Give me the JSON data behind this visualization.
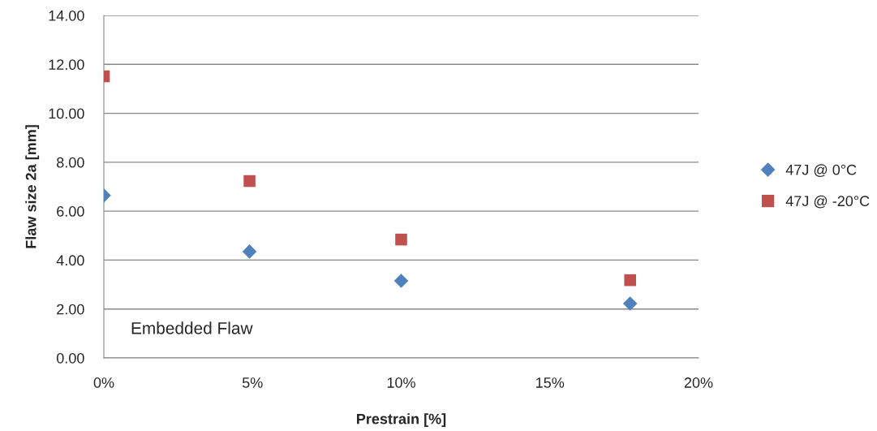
{
  "chart_data": {
    "type": "scatter",
    "xlabel": "Prestrain [%]",
    "ylabel": "Flaw size 2a [mm]",
    "xlim": [
      0,
      20
    ],
    "ylim": [
      0,
      14
    ],
    "xticks": [
      {
        "value": 0,
        "label": "0%"
      },
      {
        "value": 5,
        "label": "5%"
      },
      {
        "value": 10,
        "label": "10%"
      },
      {
        "value": 15,
        "label": "15%"
      },
      {
        "value": 20,
        "label": "20%"
      }
    ],
    "yticks": [
      {
        "value": 0,
        "label": "0.00"
      },
      {
        "value": 2,
        "label": "2.00"
      },
      {
        "value": 4,
        "label": "4.00"
      },
      {
        "value": 6,
        "label": "6.00"
      },
      {
        "value": 8,
        "label": "8.00"
      },
      {
        "value": 10,
        "label": "10.00"
      },
      {
        "value": 12,
        "label": "12.00"
      },
      {
        "value": 14,
        "label": "14.00"
      }
    ],
    "grid": "y",
    "legend": "right",
    "annotations": [
      "Embedded Flaw"
    ],
    "series": [
      {
        "name": "47J @ 0°C",
        "color": "#4f81bd",
        "marker": "diamond",
        "x": [
          0,
          4.9,
          10,
          17.7
        ],
        "values": [
          6.64,
          4.35,
          3.15,
          2.22
        ]
      },
      {
        "name": "47J @ -20°C",
        "color": "#c0504d",
        "marker": "square",
        "x": [
          0,
          4.9,
          10,
          17.7
        ],
        "values": [
          11.51,
          7.23,
          4.84,
          3.18
        ]
      }
    ]
  }
}
